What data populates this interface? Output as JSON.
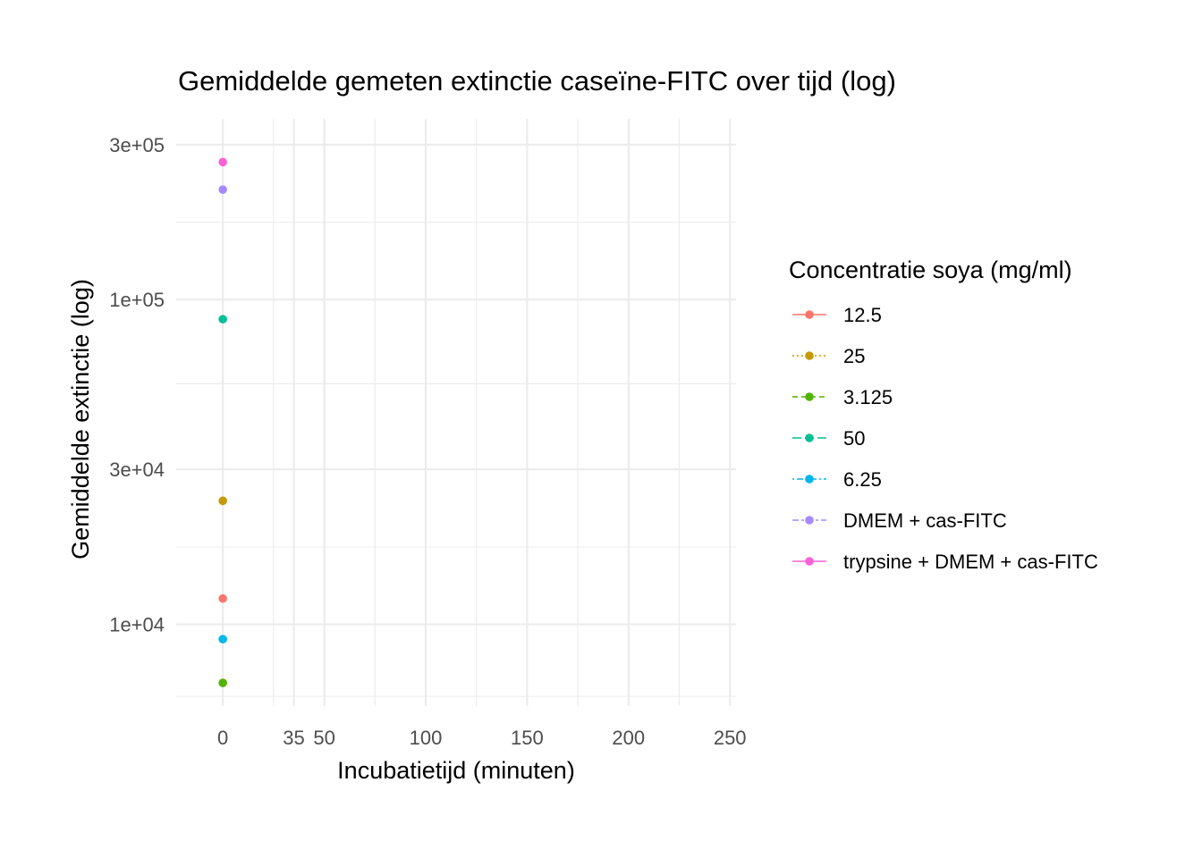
{
  "chart_data": {
    "type": "scatter",
    "title": "Gemiddelde gemeten extinctie caseïne-FITC over tijd (log)",
    "xlabel": "Incubatietijd (minuten)",
    "ylabel": "Gemiddelde extinctie (log)",
    "x_scale": "linear",
    "y_scale": "log10",
    "xlim": [
      -23,
      253
    ],
    "ylim": [
      5600,
      360000
    ],
    "x_ticks": [
      0,
      35,
      50,
      100,
      150,
      200,
      250
    ],
    "x_tick_labels": [
      "0",
      "35",
      "50",
      "100",
      "150",
      "200",
      "250"
    ],
    "x_minor_ticks": [
      25,
      75,
      125,
      175,
      225
    ],
    "y_ticks": [
      10000,
      30000,
      100000,
      300000
    ],
    "y_tick_labels": [
      "1e+04",
      "3e+04",
      "1e+05",
      "3e+05"
    ],
    "y_minor_ticks": [
      6000,
      17300,
      55000,
      173000
    ],
    "grid": true,
    "legend": {
      "title": "Concentratie soya (mg/ml)",
      "position": "right"
    },
    "series": [
      {
        "name": "12.5",
        "color": "#F8766D",
        "line_style": "solid",
        "x": [
          0
        ],
        "y": [
          12000
        ]
      },
      {
        "name": "25",
        "color": "#C49A00",
        "line_style": "dotted",
        "x": [
          0
        ],
        "y": [
          24000
        ]
      },
      {
        "name": "3.125",
        "color": "#53B400",
        "line_style": "dashed",
        "x": [
          0
        ],
        "y": [
          6600
        ]
      },
      {
        "name": "50",
        "color": "#00C094",
        "line_style": "longdash",
        "x": [
          0
        ],
        "y": [
          87000
        ]
      },
      {
        "name": "6.25",
        "color": "#00B6EB",
        "line_style": "dotdash",
        "x": [
          0
        ],
        "y": [
          9000
        ]
      },
      {
        "name": "DMEM + cas-FITC",
        "color": "#A58AFF",
        "line_style": "twodash",
        "x": [
          0
        ],
        "y": [
          218000
        ]
      },
      {
        "name": "trypsine + DMEM + cas-FITC",
        "color": "#FB61D7",
        "line_style": "solid",
        "x": [
          0
        ],
        "y": [
          265000
        ]
      }
    ]
  }
}
